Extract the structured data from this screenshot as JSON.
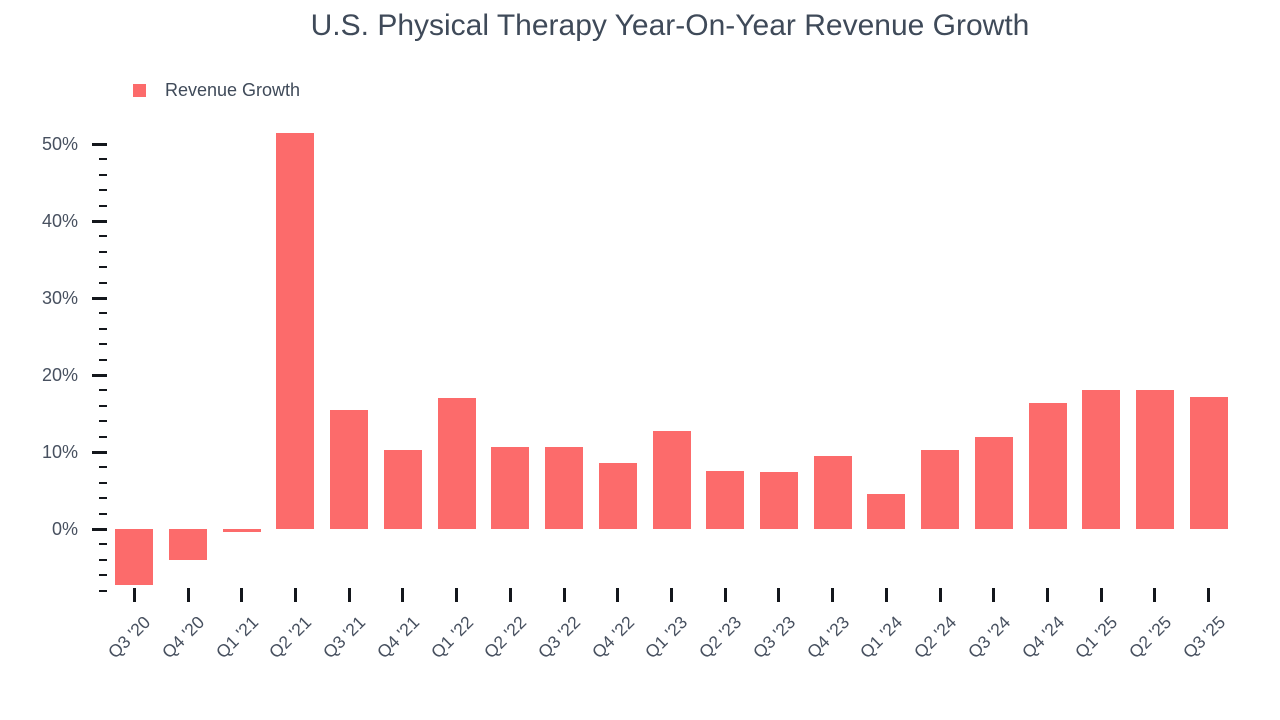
{
  "title": "U.S. Physical Therapy Year-On-Year Revenue Growth",
  "legend": {
    "label": "Revenue Growth",
    "swatch_color": "#fc6b6b"
  },
  "colors": {
    "bar": "#fc6b6b",
    "title_text": "#3f4a59",
    "axis_text": "#47505f",
    "tick": "#14171c",
    "background": "#ffffff"
  },
  "chart_data": {
    "type": "bar",
    "title": "U.S. Physical Therapy Year-On-Year Revenue Growth",
    "series_name": "Revenue Growth",
    "unit": "%",
    "categories": [
      "Q3 '20",
      "Q4 '20",
      "Q1 '21",
      "Q2 '21",
      "Q3 '21",
      "Q4 '21",
      "Q1 '22",
      "Q2 '22",
      "Q3 '22",
      "Q4 '22",
      "Q1 '23",
      "Q2 '23",
      "Q3 '23",
      "Q4 '23",
      "Q1 '24",
      "Q2 '24",
      "Q3 '24",
      "Q4 '24",
      "Q1 '25",
      "Q2 '25",
      "Q3 '25"
    ],
    "values": [
      -7.3,
      -4.0,
      -0.4,
      51.4,
      15.5,
      10.3,
      17.0,
      10.7,
      10.7,
      8.6,
      12.7,
      7.5,
      7.4,
      9.5,
      4.6,
      10.2,
      11.9,
      16.4,
      18.0,
      18.0,
      17.2
    ],
    "xlabel": "",
    "ylabel": "",
    "ylim": [
      -8,
      50
    ],
    "yticks_major": [
      0,
      10,
      20,
      30,
      40,
      50
    ],
    "ytick_labels": [
      "0%",
      "10%",
      "20%",
      "30%",
      "40%",
      "50%"
    ],
    "ytick_minor_step": 2,
    "grid": false,
    "legend_position": "top-left",
    "bar_color": "#fc6b6b"
  }
}
